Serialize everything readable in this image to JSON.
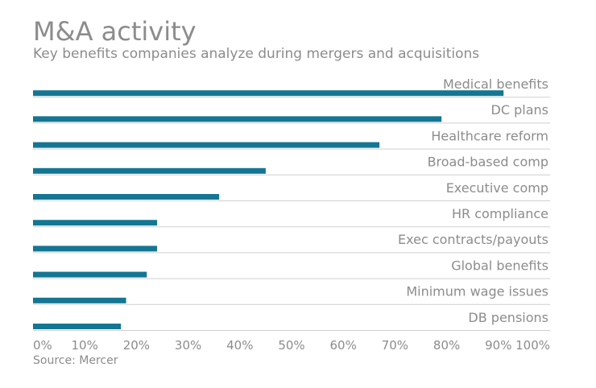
{
  "header": {
    "title": "M&A activity",
    "subtitle": "Key benefits companies analyze during mergers and acquisitions"
  },
  "footer": {
    "source": "Source: Mercer"
  },
  "colors": {
    "bar": "#147693",
    "separator": "#cfcfcf",
    "text": "#8c8c8c"
  },
  "chart_data": {
    "type": "bar",
    "orientation": "horizontal",
    "categories": [
      "Medical benefits",
      "DC plans",
      "Healthcare reform",
      "Broad-based comp",
      "Executive comp",
      "HR compliance",
      "Exec contracts/payouts",
      "Global benefits",
      "Minimum wage issues",
      "DB pensions"
    ],
    "values": [
      91,
      79,
      67,
      45,
      36,
      24,
      24,
      22,
      18,
      17
    ],
    "xlim": [
      0,
      100
    ],
    "xticks": [
      "0%",
      "10%",
      "20%",
      "30%",
      "40%",
      "50%",
      "60%",
      "70%",
      "80%",
      "90%",
      "100%"
    ],
    "title": "M&A activity",
    "subtitle": "Key benefits companies analyze during mergers and acquisitions",
    "xlabel": "",
    "ylabel": "",
    "grid": false
  }
}
